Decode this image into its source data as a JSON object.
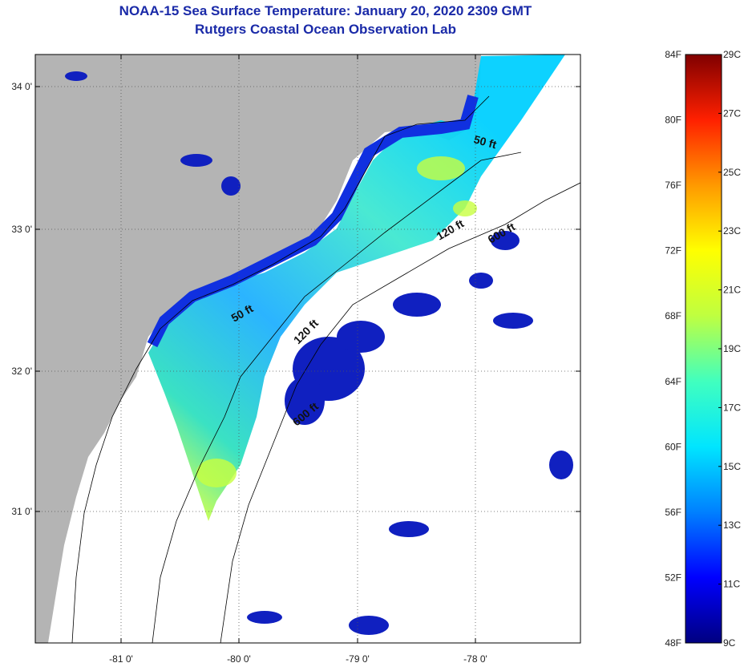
{
  "title": "NOAA-15 Sea Surface Temperature:  January 20, 2020 2309 GMT",
  "subtitle": "Rutgers Coastal Ocean Observation Lab",
  "map": {
    "lon_ticks": [
      "-81 0'",
      "-80 0'",
      "-79 0'",
      "-78 0'"
    ],
    "lat_ticks": [
      "34 0'",
      "33 0'",
      "32 0'",
      "31 0'"
    ],
    "contour_labels": [
      {
        "id": "contour-label-50ft-north",
        "text": "50 ft"
      },
      {
        "id": "contour-label-120ft-north",
        "text": "120 ft"
      },
      {
        "id": "contour-label-600ft-north",
        "text": "600 ft"
      },
      {
        "id": "contour-label-50ft-south",
        "text": "50 ft"
      },
      {
        "id": "contour-label-120ft-south",
        "text": "120 ft"
      },
      {
        "id": "contour-label-600ft-south",
        "text": "600 ft"
      }
    ],
    "colors": {
      "land": "#b4b4b4",
      "ocean_nodata": "#ffffff",
      "grid": "#555555"
    }
  },
  "colorbar": {
    "fahrenheit_labels": [
      "84F",
      "80F",
      "76F",
      "72F",
      "68F",
      "64F",
      "60F",
      "56F",
      "52F",
      "48F"
    ],
    "celsius_labels": [
      "29C",
      "27C",
      "25C",
      "23C",
      "21C",
      "19C",
      "17C",
      "15C",
      "13C",
      "11C",
      "9C"
    ],
    "colors": [
      "#000080",
      "#0000ff",
      "#0080ff",
      "#00e5ff",
      "#40ffbf",
      "#bfff40",
      "#ffff00",
      "#ff9900",
      "#ff2000",
      "#800000"
    ]
  }
}
